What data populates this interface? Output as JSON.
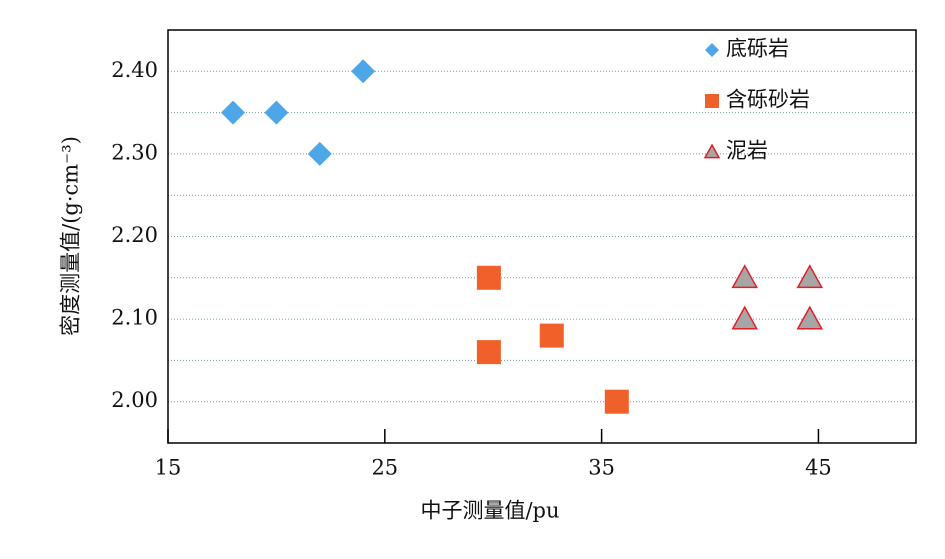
{
  "chart_data": {
    "type": "scatter",
    "x_label": "中子测量值/pu",
    "y_label": "密度测量值/(g·cm⁻³)",
    "xlim": [
      15,
      49.5
    ],
    "xticks": [
      15,
      25,
      35,
      45
    ],
    "ylim": [
      1.95,
      2.45
    ],
    "yticks": [
      {
        "value": 2.0,
        "label": "2.00"
      },
      {
        "value": 2.1,
        "label": "2.10"
      },
      {
        "value": 2.2,
        "label": "2.20"
      },
      {
        "value": 2.3,
        "label": "2.30"
      },
      {
        "value": 2.4,
        "label": "2.40"
      }
    ],
    "minor_grid": [
      2.05,
      2.15,
      2.25,
      2.35
    ],
    "grid": true,
    "legend": "upper right",
    "series": [
      {
        "name": "底砾岩",
        "marker": "diamond",
        "color": "#4da6e8",
        "x": [
          18,
          20,
          22,
          24
        ],
        "values": [
          2.35,
          2.35,
          2.3,
          2.4
        ]
      },
      {
        "name": "含砾砂岩",
        "marker": "square",
        "color": "#f0602a",
        "x": [
          29.8,
          29.8,
          32.7,
          35.7
        ],
        "values": [
          2.15,
          2.06,
          2.08,
          2.0
        ]
      },
      {
        "name": "泥岩",
        "marker": "triangle",
        "color": "#a6a6a6",
        "edgecolor": "#e0202a",
        "x": [
          41.6,
          41.6,
          44.6,
          44.6
        ],
        "values": [
          2.15,
          2.1,
          2.15,
          2.1
        ]
      }
    ]
  }
}
